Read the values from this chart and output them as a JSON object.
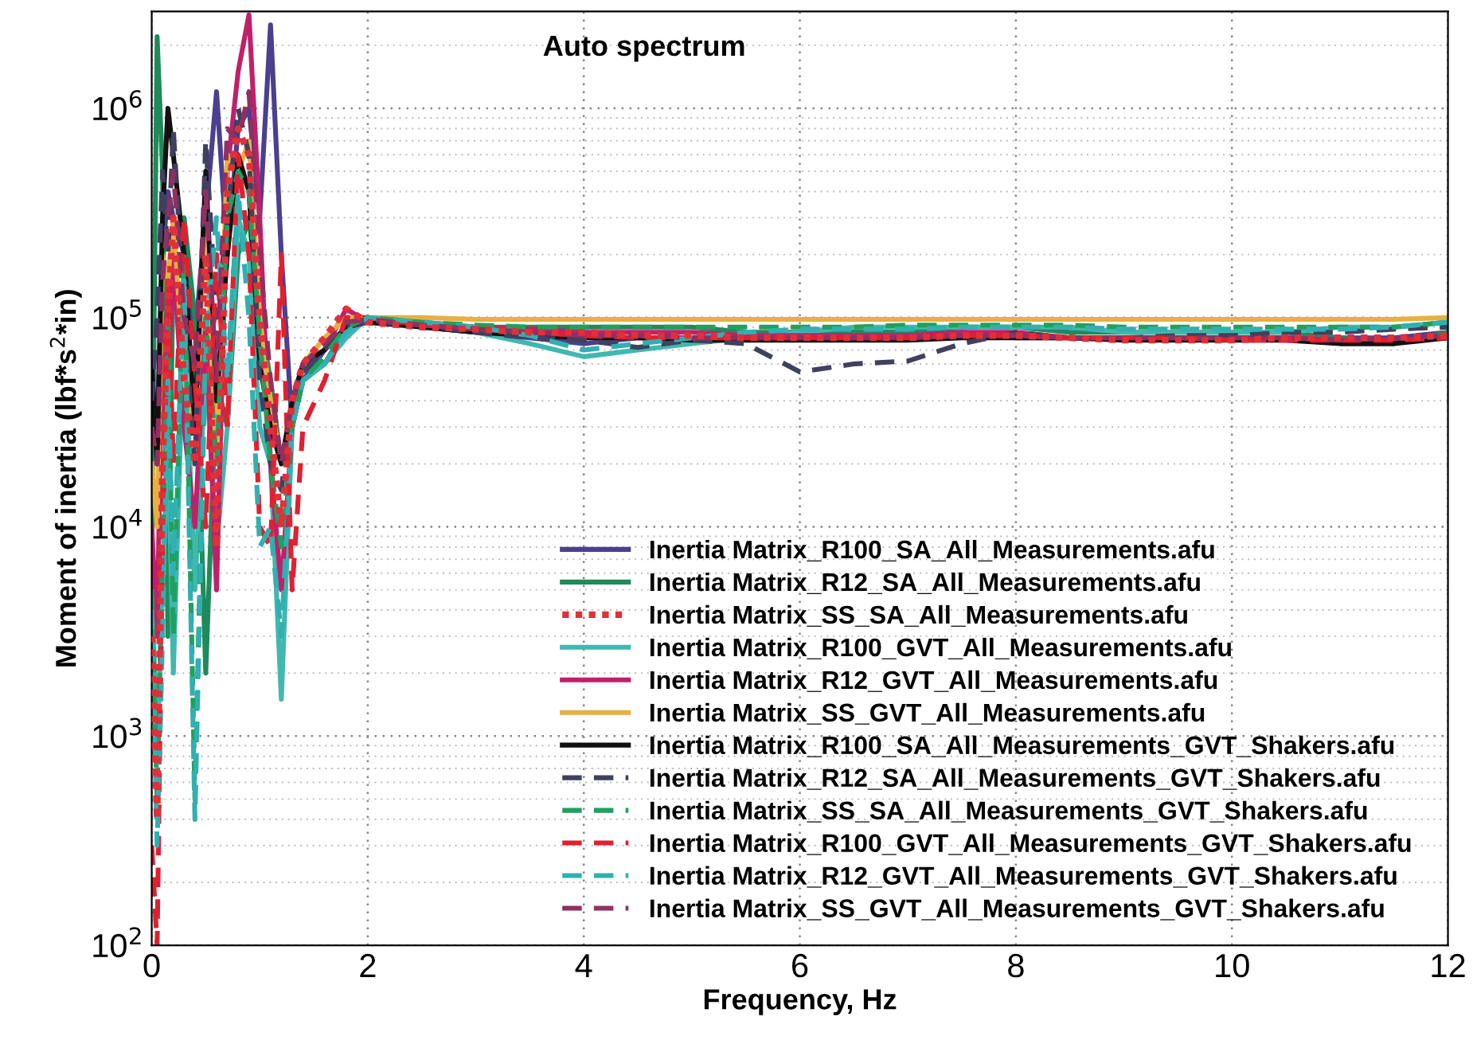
{
  "chart_data": {
    "type": "line",
    "title": "Auto spectrum",
    "xlabel": "Frequency, Hz",
    "ylabel": "Moment of inertia (lbf*s$^{2}$*in)",
    "x": [
      0,
      0.05,
      0.1,
      0.15,
      0.2,
      0.3,
      0.4,
      0.5,
      0.6,
      0.7,
      0.8,
      0.9,
      1.0,
      1.1,
      1.2,
      1.3,
      1.4,
      1.6,
      1.8,
      2.0,
      2.5,
      3,
      3.5,
      4,
      4.5,
      5,
      5.5,
      6,
      6.5,
      7,
      7.5,
      8,
      8.5,
      9,
      9.5,
      10,
      10.5,
      11,
      11.5,
      12
    ],
    "log": "y",
    "xlim": [
      0,
      12
    ],
    "ylim": [
      100,
      2900000
    ],
    "xticks": [
      0,
      2,
      4,
      6,
      8,
      10,
      12
    ],
    "yticks": [
      {
        "value": 100,
        "label": "10$^{2}$"
      },
      {
        "value": 1000,
        "label": "10$^{3}$"
      },
      {
        "value": 10000,
        "label": "10$^{4}$"
      },
      {
        "value": 100000,
        "label": "10$^{5}$"
      },
      {
        "value": 1000000,
        "label": "10$^{6}$"
      }
    ],
    "grid": true,
    "legend": "bottom right",
    "series": [
      {
        "name": "Inertia Matrix_R100_SA_All_Measurements.afu",
        "color": "#4b3f8f",
        "line_style": "solid",
        "values": [
          50000,
          30000,
          200000,
          400000,
          300000,
          200000,
          80000,
          300000,
          1200000,
          200000,
          800000,
          1000000,
          300000,
          2500000,
          200000,
          30000,
          50000,
          70000,
          90000,
          100000,
          90000,
          85000,
          80000,
          75000,
          80000,
          80000,
          80000,
          85000,
          85000,
          85000,
          85000,
          80000,
          80000,
          80000,
          80000,
          80000,
          80000,
          80000,
          80000,
          85000
        ]
      },
      {
        "name": "Inertia Matrix_R12_SA_All_Measurements.afu",
        "color": "#1f8a5a",
        "line_style": "solid",
        "values": [
          8000,
          2200000,
          500000,
          3000,
          200000,
          300000,
          100000,
          2000,
          50000,
          30000,
          200000,
          300000,
          100000,
          50000,
          20000,
          30000,
          50000,
          60000,
          90000,
          100000,
          95000,
          90000,
          90000,
          90000,
          90000,
          90000,
          85000,
          85000,
          85000,
          85000,
          90000,
          90000,
          85000,
          85000,
          85000,
          85000,
          85000,
          80000,
          75000,
          85000
        ]
      },
      {
        "name": "Inertia Matrix_SS_SA_All_Measurements.afu",
        "color": "#e0303a",
        "line_style": "dotted",
        "values": [
          3000,
          400,
          20000,
          100000,
          300000,
          50000,
          20000,
          200000,
          8000,
          400000,
          800000,
          600000,
          100000,
          30000,
          10000,
          40000,
          60000,
          80000,
          110000,
          95000,
          90000,
          88000,
          85000,
          85000,
          82000,
          82000,
          80000,
          80000,
          80000,
          80000,
          82000,
          82000,
          80000,
          78000,
          78000,
          78000,
          80000,
          80000,
          80000,
          82000
        ]
      },
      {
        "name": "Inertia Matrix_R100_GVT_All_Measurements.afu",
        "color": "#40b8b0",
        "line_style": "solid",
        "values": [
          6000,
          800,
          5000,
          30000,
          2000,
          100000,
          5000,
          60000,
          8000,
          30000,
          300000,
          200000,
          30000,
          20000,
          1500,
          30000,
          50000,
          60000,
          80000,
          100000,
          90000,
          85000,
          75000,
          65000,
          70000,
          75000,
          80000,
          85000,
          90000,
          90000,
          90000,
          90000,
          90000,
          85000,
          85000,
          85000,
          85000,
          90000,
          90000,
          95000
        ]
      },
      {
        "name": "Inertia Matrix_R12_GVT_All_Measurements.afu",
        "color": "#c0206a",
        "line_style": "solid",
        "values": [
          10000,
          3000,
          100000,
          50000,
          200000,
          30000,
          10000,
          100000,
          5000,
          500000,
          1500000,
          2800000,
          300000,
          20000,
          5000,
          30000,
          60000,
          70000,
          110000,
          95000,
          92000,
          90000,
          88000,
          85000,
          85000,
          85000,
          82000,
          82000,
          82000,
          82000,
          85000,
          85000,
          80000,
          80000,
          80000,
          80000,
          80000,
          78000,
          78000,
          80000
        ]
      },
      {
        "name": "Inertia Matrix_SS_GVT_All_Measurements.afu",
        "color": "#e8b040",
        "line_style": "solid",
        "values": [
          20000,
          10000,
          200000,
          150000,
          300000,
          50000,
          30000,
          300000,
          20000,
          600000,
          500000,
          700000,
          100000,
          40000,
          20000,
          40000,
          60000,
          80000,
          100000,
          100000,
          100000,
          98000,
          98000,
          98000,
          98000,
          98000,
          98000,
          98000,
          98000,
          98000,
          98000,
          98000,
          98000,
          98000,
          98000,
          98000,
          98000,
          98000,
          98000,
          100000
        ]
      },
      {
        "name": "Inertia Matrix_R100_SA_All_Measurements_GVT_Shakers.afu",
        "color": "#111111",
        "line_style": "solid",
        "values": [
          60000,
          20000,
          300000,
          1000000,
          600000,
          200000,
          30000,
          500000,
          40000,
          200000,
          600000,
          400000,
          60000,
          30000,
          20000,
          40000,
          60000,
          70000,
          90000,
          95000,
          90000,
          85000,
          82000,
          80000,
          80000,
          78000,
          78000,
          78000,
          78000,
          78000,
          80000,
          80000,
          80000,
          78000,
          78000,
          78000,
          78000,
          75000,
          75000,
          80000
        ]
      },
      {
        "name": "Inertia Matrix_R12_SA_All_Measurements_GVT_Shakers.afu",
        "color": "#404060",
        "line_style": "dashed",
        "values": [
          40000,
          100000,
          500000,
          200000,
          800000,
          100000,
          20000,
          700000,
          100000,
          300000,
          1000000,
          600000,
          50000,
          20000,
          15000,
          40000,
          55000,
          70000,
          90000,
          95000,
          92000,
          85000,
          80000,
          78000,
          72000,
          78000,
          75000,
          55000,
          60000,
          62000,
          75000,
          85000,
          80000,
          80000,
          82000,
          82000,
          85000,
          85000,
          88000,
          90000
        ]
      },
      {
        "name": "Inertia Matrix_SS_SA_All_Measurements_GVT_Shakers.afu",
        "color": "#20a060",
        "line_style": "dashed",
        "values": [
          5000,
          500,
          8000,
          100000,
          3000,
          200000,
          500,
          100000,
          20000,
          300000,
          500000,
          400000,
          80000,
          20000,
          8000,
          30000,
          50000,
          65000,
          90000,
          100000,
          95000,
          92000,
          90000,
          90000,
          90000,
          90000,
          90000,
          90000,
          90000,
          92000,
          92000,
          92000,
          92000,
          90000,
          90000,
          90000,
          90000,
          90000,
          90000,
          95000
        ]
      },
      {
        "name": "Inertia Matrix_R100_GVT_All_Measurements_GVT_Shakers.afu",
        "color": "#e02030",
        "line_style": "dashed",
        "values": [
          300,
          100,
          8000,
          150000,
          20000,
          300000,
          50000,
          10000,
          200000,
          30000,
          600000,
          200000,
          10000,
          8000,
          200000,
          5000,
          30000,
          50000,
          100000,
          100000,
          92000,
          88000,
          85000,
          82000,
          80000,
          80000,
          80000,
          80000,
          80000,
          80000,
          82000,
          82000,
          80000,
          80000,
          80000,
          78000,
          78000,
          78000,
          78000,
          80000
        ]
      },
      {
        "name": "Inertia Matrix_R12_GVT_All_Measurements_GVT_Shakers.afu",
        "color": "#30b0b0",
        "line_style": "dashed",
        "values": [
          4000,
          300,
          3000,
          50000,
          6000,
          150000,
          400,
          80000,
          300000,
          50000,
          400000,
          100000,
          8000,
          10000,
          3000,
          30000,
          50000,
          60000,
          85000,
          100000,
          95000,
          90000,
          82000,
          70000,
          75000,
          80000,
          85000,
          88000,
          88000,
          88000,
          90000,
          90000,
          90000,
          88000,
          88000,
          88000,
          88000,
          88000,
          90000,
          95000
        ]
      },
      {
        "name": "Inertia Matrix_SS_GVT_All_Measurements_GVT_Shakers.afu",
        "color": "#903060",
        "line_style": "dashed",
        "values": [
          30000,
          20000,
          150000,
          300000,
          500000,
          100000,
          60000,
          400000,
          50000,
          800000,
          700000,
          1200000,
          200000,
          50000,
          20000,
          40000,
          60000,
          75000,
          95000,
          98000,
          92000,
          88000,
          85000,
          82000,
          82000,
          80000,
          80000,
          80000,
          80000,
          80000,
          82000,
          82000,
          80000,
          80000,
          80000,
          80000,
          80000,
          78000,
          80000,
          82000
        ]
      }
    ]
  }
}
